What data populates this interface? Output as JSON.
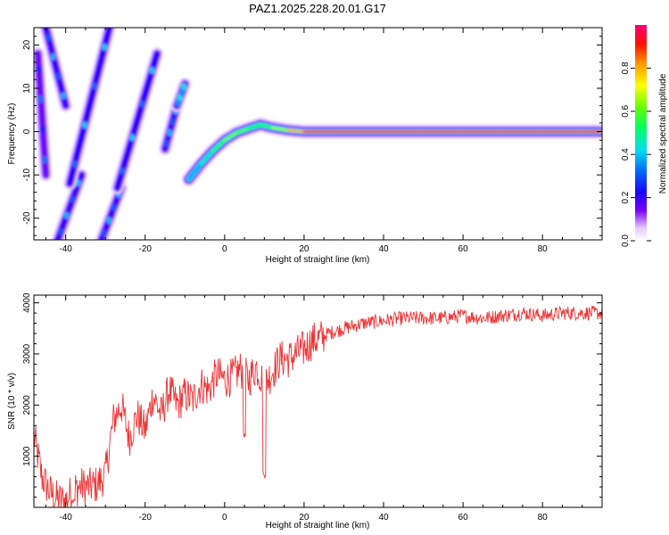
{
  "title": "PAZ1.2025.228.20.01.G17",
  "chart_data": [
    {
      "type": "heatmap",
      "xlabel": "Height of straight line (km)",
      "ylabel": "Frequency (Hz)",
      "xlim": [
        -48,
        95
      ],
      "ylim": [
        -25,
        24
      ],
      "xticks": [
        -40,
        -20,
        0,
        20,
        40,
        60,
        80
      ],
      "yticks": [
        -20,
        -10,
        0,
        10,
        20
      ],
      "colorbar": {
        "label": "Normalized spectral amplitude",
        "range": [
          0,
          1
        ],
        "ticks": [
          "0.0",
          "0.2",
          "0.4",
          "0.6",
          "0.8"
        ]
      },
      "tracks": [
        {
          "x": [
            -47,
            -45
          ],
          "y": [
            18,
            -10
          ],
          "amplitude": 0.15
        },
        {
          "x": [
            -45,
            -40
          ],
          "y": [
            24,
            6
          ],
          "amplitude": 0.2
        },
        {
          "x": [
            -42,
            -36
          ],
          "y": [
            -25,
            -10
          ],
          "amplitude": 0.2
        },
        {
          "x": [
            -39,
            -29
          ],
          "y": [
            -12,
            24
          ],
          "amplitude": 0.22
        },
        {
          "x": [
            -31,
            -26
          ],
          "y": [
            -25,
            -13
          ],
          "amplitude": 0.2
        },
        {
          "x": [
            -27,
            -17
          ],
          "y": [
            -13,
            18
          ],
          "amplitude": 0.22
        },
        {
          "x": [
            -15,
            -12
          ],
          "y": [
            -4,
            6
          ],
          "amplitude": 0.2
        },
        {
          "x": [
            -12,
            -10
          ],
          "y": [
            6,
            11
          ],
          "amplitude": 0.25
        }
      ],
      "main_curve": {
        "x": [
          -9,
          -6,
          -3,
          0,
          3,
          6,
          9,
          12,
          16,
          20,
          30,
          40,
          50,
          60,
          70,
          80,
          90,
          95
        ],
        "y": [
          -11,
          -7.5,
          -4.5,
          -2,
          -0.3,
          0.7,
          1.6,
          0.9,
          0.3,
          0,
          0,
          0,
          0,
          0,
          0,
          0,
          0,
          0
        ],
        "amplitude": [
          0.35,
          0.4,
          0.5,
          0.6,
          0.65,
          0.55,
          0.5,
          0.6,
          0.7,
          0.9,
          0.95,
          0.93,
          0.95,
          0.92,
          0.95,
          0.94,
          0.95,
          0.95
        ]
      }
    },
    {
      "type": "line",
      "xlabel": "Height of straight line (km)",
      "ylabel": "SNR (10 * v/v)",
      "xlim": [
        -48,
        95
      ],
      "ylim": [
        0,
        4150
      ],
      "xticks": [
        -40,
        -20,
        0,
        20,
        40,
        60,
        80
      ],
      "yticks": [
        1000,
        2000,
        3000,
        4000
      ],
      "series": [
        {
          "color": "#ee3333",
          "x": [
            -48,
            -46,
            -44,
            -42,
            -40,
            -38,
            -36,
            -34,
            -32,
            -30,
            -28,
            -26,
            -24,
            -22,
            -20,
            -18,
            -16,
            -14,
            -12,
            -10,
            -8,
            -6,
            -4,
            -2,
            0,
            2,
            4,
            6,
            8,
            10,
            12,
            14,
            16,
            18,
            20,
            22,
            24,
            26,
            28,
            30,
            35,
            40,
            45,
            50,
            55,
            60,
            65,
            70,
            75,
            80,
            85,
            90,
            95
          ],
          "y": [
            1400,
            600,
            300,
            150,
            120,
            350,
            420,
            400,
            450,
            650,
            1700,
            2000,
            1350,
            1800,
            1500,
            2200,
            1800,
            2300,
            2000,
            2200,
            2100,
            2400,
            2300,
            2600,
            2500,
            2550,
            2700,
            2500,
            2750,
            2400,
            2650,
            2900,
            2900,
            3000,
            3100,
            3250,
            3300,
            3400,
            3450,
            3500,
            3600,
            3650,
            3700,
            3700,
            3700,
            3750,
            3700,
            3750,
            3800,
            3750,
            3800,
            3800,
            3800
          ],
          "dips": [
            {
              "x": 5,
              "y": 1300
            },
            {
              "x": 10,
              "y": 550
            },
            {
              "x": -38,
              "y": 50
            }
          ]
        }
      ]
    }
  ]
}
